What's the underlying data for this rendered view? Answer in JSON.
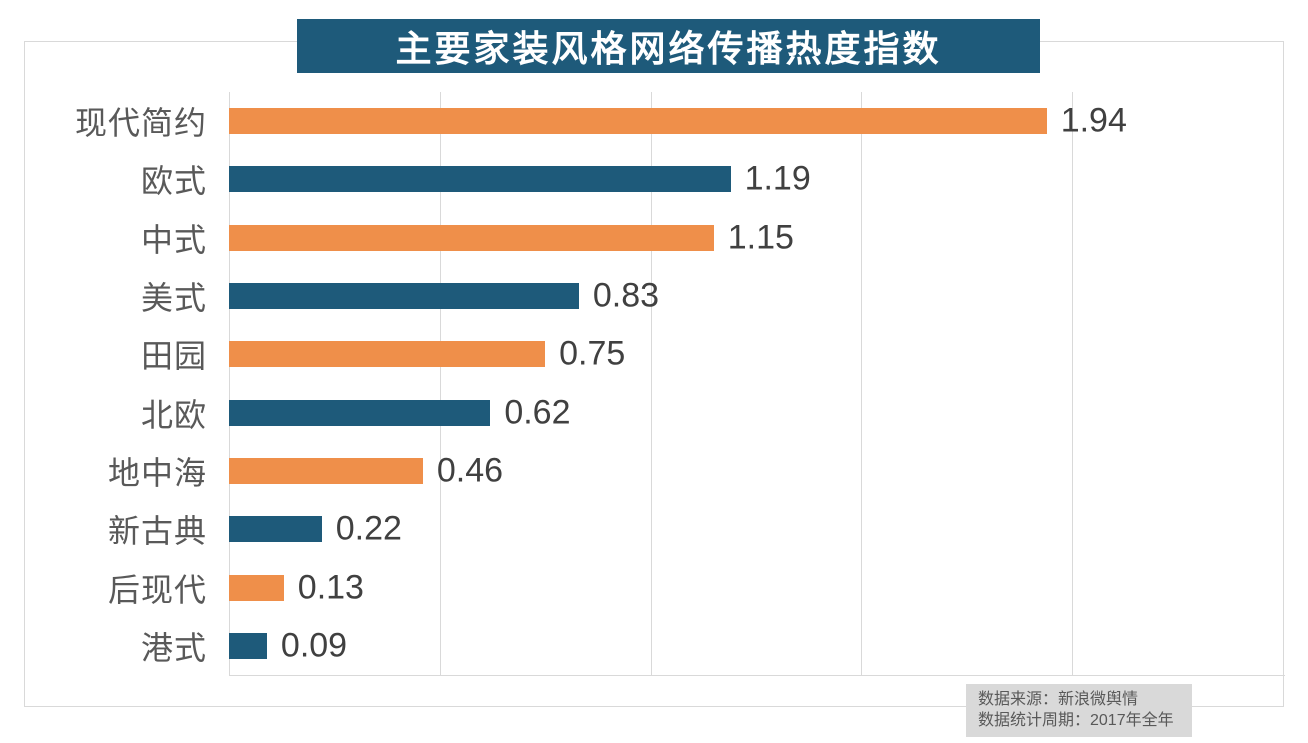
{
  "title": {
    "text": "主要家装风格网络传播热度指数",
    "bg_color": "#1E5A7A",
    "text_color": "#FFFFFF"
  },
  "chart_data": {
    "type": "bar",
    "orientation": "horizontal",
    "title": "主要家装风格网络传播热度指数",
    "categories": [
      "现代简约",
      "欧式",
      "中式",
      "美式",
      "田园",
      "北欧",
      "地中海",
      "新古典",
      "后现代",
      "港式"
    ],
    "values": [
      1.94,
      1.19,
      1.15,
      0.83,
      0.75,
      0.62,
      0.46,
      0.22,
      0.13,
      0.09
    ],
    "value_labels": [
      "1.94",
      "1.19",
      "1.15",
      "0.83",
      "0.75",
      "0.62",
      "0.46",
      "0.22",
      "0.13",
      "0.09"
    ],
    "bar_colors": [
      "#EF8F4A",
      "#1E5A7A",
      "#EF8F4A",
      "#1E5A7A",
      "#EF8F4A",
      "#1E5A7A",
      "#EF8F4A",
      "#1E5A7A",
      "#EF8F4A",
      "#1E5A7A"
    ],
    "xlabel": "",
    "ylabel": "",
    "xlim": [
      0,
      2.5
    ],
    "gridlines_x": [
      0,
      0.5,
      1.0,
      1.5,
      2.0
    ],
    "grid": true,
    "legend": null,
    "data_labels": true
  },
  "colors": {
    "orange": "#EF8F4A",
    "blue": "#1E5A7A",
    "grid_line": "#D9D9D9",
    "frame_border": "#D9D9D9",
    "category_label": "#595959",
    "value_label": "#404040",
    "source_bg": "#D9D9D9",
    "source_text": "#595959"
  },
  "source_note": {
    "line1": "数据来源：新浪微舆情",
    "line2": "数据统计周期：2017年全年"
  }
}
